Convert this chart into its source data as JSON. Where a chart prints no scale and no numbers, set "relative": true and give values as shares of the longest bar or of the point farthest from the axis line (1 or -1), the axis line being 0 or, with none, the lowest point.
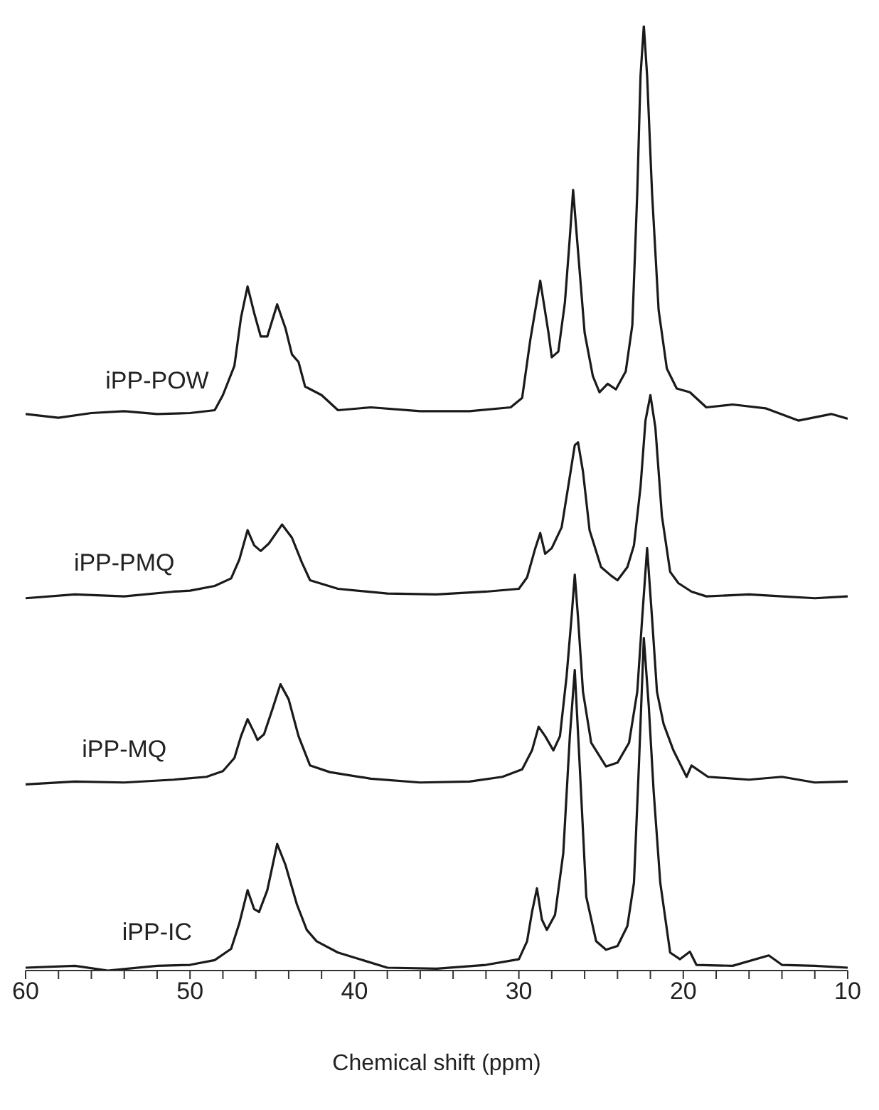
{
  "chart_data": {
    "type": "line",
    "xlabel": "Chemical shift (ppm)",
    "relative": true,
    "marker": "none",
    "line_style": "solid",
    "xlim": [
      60,
      10
    ],
    "xticks": [
      60,
      {
        "value": 58,
        "label": null
      },
      {
        "value": 56,
        "label": null
      },
      {
        "value": 54,
        "label": null
      },
      {
        "value": 52,
        "label": null
      },
      50,
      {
        "value": 48,
        "label": null
      },
      {
        "value": 46,
        "label": null
      },
      {
        "value": 44,
        "label": null
      },
      {
        "value": 42,
        "label": null
      },
      40,
      {
        "value": 38,
        "label": null
      },
      {
        "value": 36,
        "label": null
      },
      {
        "value": 34,
        "label": null
      },
      {
        "value": 32,
        "label": null
      },
      30,
      {
        "value": 28,
        "label": null
      },
      {
        "value": 26,
        "label": null
      },
      {
        "value": 24,
        "label": null
      },
      {
        "value": 22,
        "label": null
      },
      20,
      {
        "value": 18,
        "label": null
      },
      {
        "value": 16,
        "label": null
      },
      {
        "value": 14,
        "label": null
      },
      {
        "value": 12,
        "label": null
      },
      10
    ],
    "series": [
      {
        "name": "iPP-POW",
        "color": "#1a1a1a",
        "x": [
          60,
          58,
          56,
          54,
          52,
          50,
          48.5,
          48,
          47.3,
          46.9,
          46.5,
          46.1,
          45.7,
          45.3,
          44.7,
          44.2,
          43.8,
          43.4,
          43,
          42,
          41,
          39,
          36,
          33,
          30.5,
          29.8,
          29.3,
          28.7,
          28.2,
          28,
          27.6,
          27.2,
          26.9,
          26.7,
          26.4,
          26,
          25.5,
          25.1,
          24.6,
          24.1,
          23.5,
          23.1,
          22.8,
          22.6,
          22.4,
          22.2,
          21.9,
          21.5,
          21,
          20.4,
          19.6,
          18.6,
          17,
          15,
          13,
          11,
          10
        ],
        "values": [
          0.589,
          0.585,
          0.59,
          0.592,
          0.589,
          0.59,
          0.593,
          0.609,
          0.64,
          0.691,
          0.724,
          0.696,
          0.671,
          0.671,
          0.705,
          0.68,
          0.652,
          0.644,
          0.618,
          0.609,
          0.593,
          0.596,
          0.592,
          0.592,
          0.596,
          0.606,
          0.668,
          0.73,
          0.675,
          0.649,
          0.655,
          0.707,
          0.776,
          0.826,
          0.761,
          0.675,
          0.629,
          0.612,
          0.621,
          0.615,
          0.634,
          0.683,
          0.823,
          0.947,
          1,
          0.947,
          0.823,
          0.699,
          0.637,
          0.616,
          0.612,
          0.596,
          0.599,
          0.595,
          0.582,
          0.589,
          0.584
        ]
      },
      {
        "name": "iPP-PMQ",
        "color": "#1a1a1a",
        "x": [
          60,
          57,
          54,
          51,
          50,
          48.5,
          47.5,
          47,
          46.5,
          46.1,
          45.7,
          45.2,
          44.4,
          43.8,
          43.2,
          42.7,
          41,
          38,
          35,
          32,
          30,
          29.5,
          29,
          28.7,
          28.4,
          28,
          27.4,
          27,
          26.6,
          26.4,
          26.1,
          25.7,
          25,
          24.4,
          24,
          23.4,
          23,
          22.6,
          22.3,
          22,
          21.7,
          21.3,
          20.8,
          20.3,
          19.5,
          18.6,
          16,
          14,
          12,
          10
        ],
        "values": [
          0.394,
          0.398,
          0.396,
          0.401,
          0.402,
          0.407,
          0.415,
          0.435,
          0.466,
          0.45,
          0.444,
          0.452,
          0.472,
          0.458,
          0.432,
          0.413,
          0.404,
          0.399,
          0.398,
          0.401,
          0.404,
          0.416,
          0.447,
          0.463,
          0.441,
          0.447,
          0.469,
          0.512,
          0.556,
          0.559,
          0.528,
          0.466,
          0.427,
          0.418,
          0.413,
          0.427,
          0.45,
          0.512,
          0.582,
          0.609,
          0.575,
          0.481,
          0.422,
          0.41,
          0.401,
          0.396,
          0.398,
          0.396,
          0.394,
          0.396
        ]
      },
      {
        "name": "iPP-MQ",
        "color": "#1a1a1a",
        "x": [
          60,
          57,
          54,
          51,
          49,
          48,
          47.3,
          46.9,
          46.5,
          46.1,
          45.9,
          45.5,
          45,
          44.5,
          44,
          43.4,
          42.7,
          41.5,
          39,
          36,
          33,
          31,
          29.8,
          29.2,
          28.8,
          28.4,
          27.9,
          27.5,
          27.1,
          26.8,
          26.6,
          26.4,
          26.1,
          25.6,
          24.7,
          24,
          23.3,
          22.8,
          22.5,
          22.2,
          21.9,
          21.6,
          21.2,
          20.6,
          19.8,
          19.5,
          18.5,
          16,
          14,
          12,
          10
        ],
        "values": [
          0.197,
          0.2,
          0.199,
          0.202,
          0.205,
          0.211,
          0.225,
          0.248,
          0.266,
          0.252,
          0.244,
          0.25,
          0.276,
          0.303,
          0.287,
          0.248,
          0.217,
          0.21,
          0.203,
          0.199,
          0.2,
          0.205,
          0.213,
          0.233,
          0.258,
          0.248,
          0.233,
          0.248,
          0.311,
          0.373,
          0.419,
          0.373,
          0.295,
          0.241,
          0.216,
          0.22,
          0.241,
          0.295,
          0.373,
          0.447,
          0.373,
          0.295,
          0.261,
          0.233,
          0.205,
          0.217,
          0.205,
          0.202,
          0.205,
          0.199,
          0.2
        ]
      },
      {
        "name": "iPP-IC",
        "color": "#1a1a1a",
        "x": [
          60,
          57,
          55,
          52,
          50,
          48.5,
          47.5,
          47,
          46.5,
          46.1,
          45.8,
          45.3,
          44.7,
          44.2,
          43.5,
          42.9,
          42.3,
          41,
          38,
          35,
          32,
          30,
          29.5,
          29.2,
          28.9,
          28.6,
          28.3,
          27.8,
          27.3,
          26.9,
          26.6,
          26.3,
          25.9,
          25.3,
          24.7,
          24,
          23.4,
          23,
          22.7,
          22.4,
          22.1,
          21.8,
          21.4,
          20.8,
          20.2,
          19.6,
          19.2,
          17,
          14.8,
          14,
          12,
          10
        ],
        "values": [
          0.003,
          0.005,
          0,
          0.005,
          0.006,
          0.011,
          0.023,
          0.05,
          0.085,
          0.065,
          0.062,
          0.085,
          0.134,
          0.112,
          0.07,
          0.043,
          0.031,
          0.019,
          0.003,
          0.002,
          0.006,
          0.012,
          0.031,
          0.062,
          0.087,
          0.054,
          0.043,
          0.059,
          0.124,
          0.248,
          0.318,
          0.217,
          0.078,
          0.031,
          0.022,
          0.026,
          0.047,
          0.093,
          0.217,
          0.352,
          0.28,
          0.189,
          0.093,
          0.019,
          0.012,
          0.02,
          0.006,
          0.005,
          0.016,
          0.006,
          0.005,
          0.003
        ]
      }
    ]
  }
}
